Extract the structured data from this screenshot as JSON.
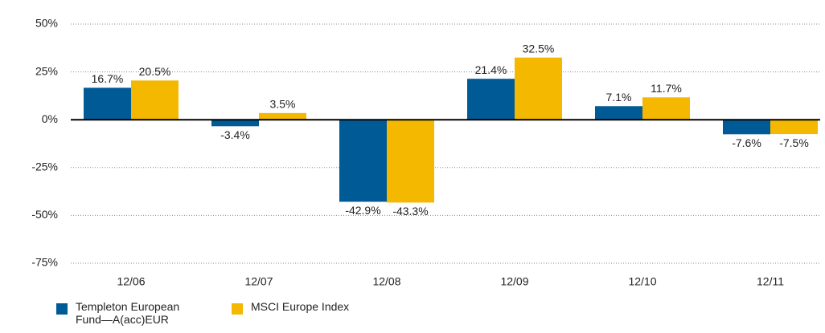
{
  "chart_data": {
    "type": "bar",
    "categories": [
      "12/06",
      "12/07",
      "12/08",
      "12/09",
      "12/10",
      "12/11"
    ],
    "series": [
      {
        "name": "Templeton European Fund—A(acc)EUR",
        "color": "#005a96",
        "values": [
          16.7,
          -3.4,
          -42.9,
          21.4,
          7.1,
          -7.6
        ],
        "value_labels": [
          "16.7%",
          "-3.4%",
          "-42.9%",
          "21.4%",
          "7.1%",
          "-7.6%"
        ]
      },
      {
        "name": "MSCI Europe Index",
        "color": "#f5b800",
        "values": [
          20.5,
          3.5,
          -43.3,
          32.5,
          11.7,
          -7.5
        ],
        "value_labels": [
          "20.5%",
          "3.5%",
          "-43.3%",
          "32.5%",
          "11.7%",
          "-7.5%"
        ]
      }
    ],
    "ylim": [
      -75,
      50
    ],
    "yticks": [
      {
        "value": 50,
        "label": "50%"
      },
      {
        "value": 25,
        "label": "25%"
      },
      {
        "value": 0,
        "label": "0%"
      },
      {
        "value": -25,
        "label": "-25%"
      },
      {
        "value": -50,
        "label": "-50%"
      },
      {
        "value": -75,
        "label": "-75%"
      }
    ],
    "grid": true
  }
}
